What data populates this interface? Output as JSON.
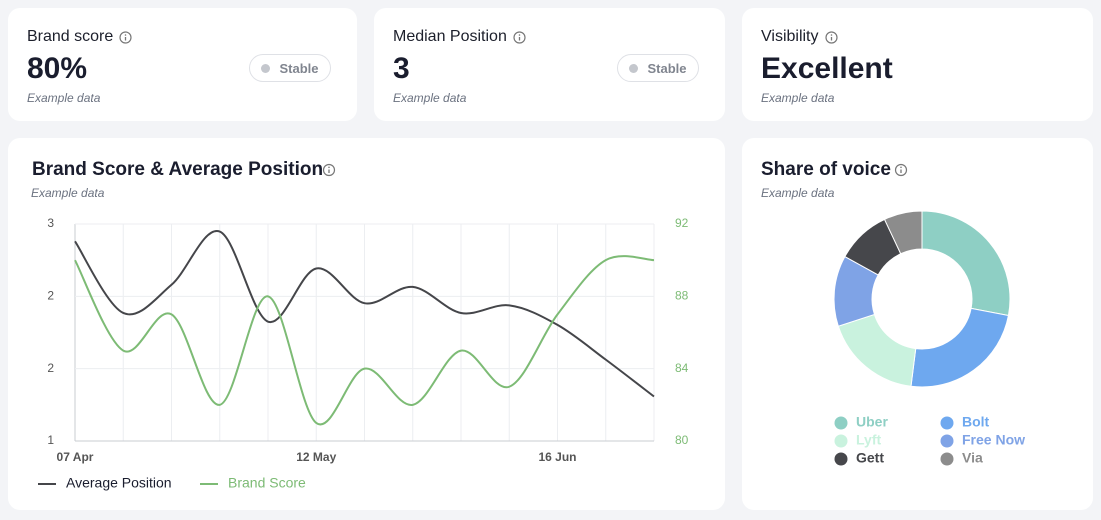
{
  "cards": [
    {
      "title": "Brand score",
      "value": "80%",
      "note": "Example data",
      "badge": "Stable"
    },
    {
      "title": "Median Position",
      "value": "3",
      "note": "Example data",
      "badge": "Stable"
    },
    {
      "title": "Visibility",
      "value": "Excellent",
      "note": "Example data"
    }
  ],
  "chart_data": [
    {
      "type": "line",
      "title": "Brand Score & Average Position",
      "subtitle": "Example data",
      "categories": [
        "07 Apr",
        null,
        null,
        null,
        null,
        "12 May",
        null,
        null,
        null,
        null,
        "16 Jun",
        null,
        null
      ],
      "series": [
        {
          "name": "Average Position",
          "color": "#45464a",
          "axis": "y",
          "values": [
            2.84,
            2.18,
            2.44,
            2.93,
            2.1,
            2.59,
            2.27,
            2.42,
            2.18,
            2.25,
            2.07,
            1.75,
            1.41
          ]
        },
        {
          "name": "Brand Score",
          "color": "#7dbb75",
          "axis": "y2",
          "values": [
            90,
            85,
            87,
            82,
            88,
            81,
            84,
            82,
            85,
            83,
            87,
            90,
            90
          ]
        }
      ],
      "ylim": [
        1,
        3
      ],
      "yticks": [
        1,
        {
          "value": 1.667,
          "label": "2"
        },
        {
          "value": 2.333,
          "label": "2"
        },
        3
      ],
      "y2lim": [
        80,
        92
      ],
      "y2ticks": [
        80,
        84,
        88,
        92
      ],
      "grid": true
    },
    {
      "type": "donut",
      "title": "Share of voice",
      "subtitle": "Example data",
      "categories": [
        "Uber",
        "Bolt",
        "Lyft",
        "Free Now",
        "Gett",
        "Via"
      ],
      "values": [
        28,
        24,
        18,
        13,
        10,
        7
      ],
      "colors": [
        "#8ecfc4",
        "#6ea8ef",
        "#c9f2de",
        "#7fa3e6",
        "#46474b",
        "#8c8c8c"
      ]
    }
  ]
}
